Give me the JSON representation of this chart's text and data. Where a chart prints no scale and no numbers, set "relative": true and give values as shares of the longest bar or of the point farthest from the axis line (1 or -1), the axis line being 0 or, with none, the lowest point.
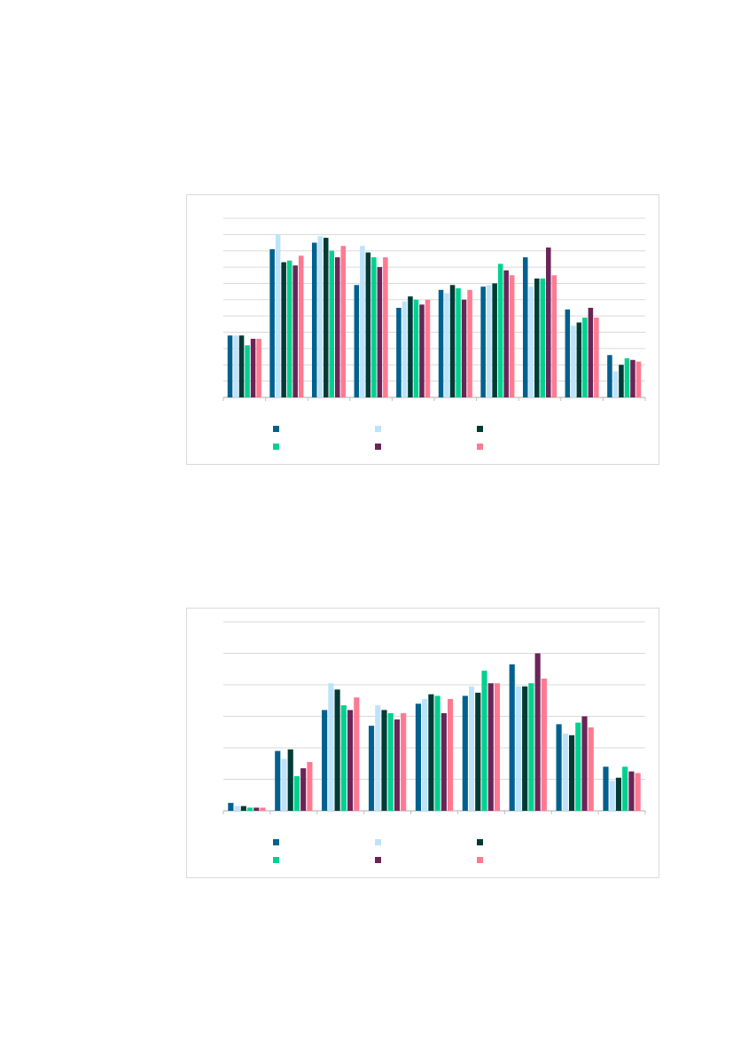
{
  "chart_data": [
    {
      "type": "bar",
      "relative": true,
      "grid": "y",
      "categories": [
        null,
        null,
        null,
        null,
        null,
        null,
        null,
        null,
        null,
        null
      ],
      "series": [
        {
          "color": "#00618f",
          "values": [
            0.38,
            0.91,
            0.95,
            0.69,
            0.55,
            0.66,
            0.68,
            0.86,
            0.54,
            0.26
          ]
        },
        {
          "color": "#bde3fb",
          "values": [
            0.38,
            1,
            0.99,
            0.93,
            0.59,
            0.64,
            0.69,
            0.68,
            0.44,
            0.16
          ]
        },
        {
          "color": "#003b36",
          "values": [
            0.38,
            0.83,
            0.98,
            0.89,
            0.62,
            0.69,
            0.7,
            0.73,
            0.46,
            0.2
          ]
        },
        {
          "color": "#00d18f",
          "values": [
            0.32,
            0.84,
            0.9,
            0.86,
            0.6,
            0.67,
            0.82,
            0.73,
            0.49,
            0.24
          ]
        },
        {
          "color": "#6b2458",
          "values": [
            0.36,
            0.81,
            0.86,
            0.8,
            0.57,
            0.6,
            0.78,
            0.92,
            0.55,
            0.23
          ]
        },
        {
          "color": "#ff7a91",
          "values": [
            0.36,
            0.87,
            0.93,
            0.86,
            0.6,
            0.66,
            0.75,
            0.75,
            0.49,
            0.22
          ]
        }
      ]
    },
    {
      "type": "bar",
      "relative": true,
      "grid": "y",
      "categories": [
        null,
        null,
        null,
        null,
        null,
        null,
        null,
        null,
        null
      ],
      "series": [
        {
          "color": "#00618f",
          "values": [
            0.05,
            0.38,
            0.64,
            0.54,
            0.68,
            0.73,
            0.93,
            0.55,
            0.28
          ]
        },
        {
          "color": "#bde3fb",
          "values": [
            0.03,
            0.33,
            0.81,
            0.67,
            0.71,
            0.79,
            0.79,
            0.49,
            0.19
          ]
        },
        {
          "color": "#003b36",
          "values": [
            0.03,
            0.39,
            0.77,
            0.64,
            0.74,
            0.75,
            0.79,
            0.48,
            0.21
          ]
        },
        {
          "color": "#00d18f",
          "values": [
            0.02,
            0.22,
            0.67,
            0.62,
            0.73,
            0.89,
            0.81,
            0.56,
            0.28
          ]
        },
        {
          "color": "#6b2458",
          "values": [
            0.02,
            0.27,
            0.64,
            0.58,
            0.62,
            0.81,
            1,
            0.6,
            0.25
          ]
        },
        {
          "color": "#ff7a91",
          "values": [
            0.02,
            0.31,
            0.72,
            0.62,
            0.71,
            0.81,
            0.84,
            0.53,
            0.24
          ]
        }
      ]
    }
  ]
}
